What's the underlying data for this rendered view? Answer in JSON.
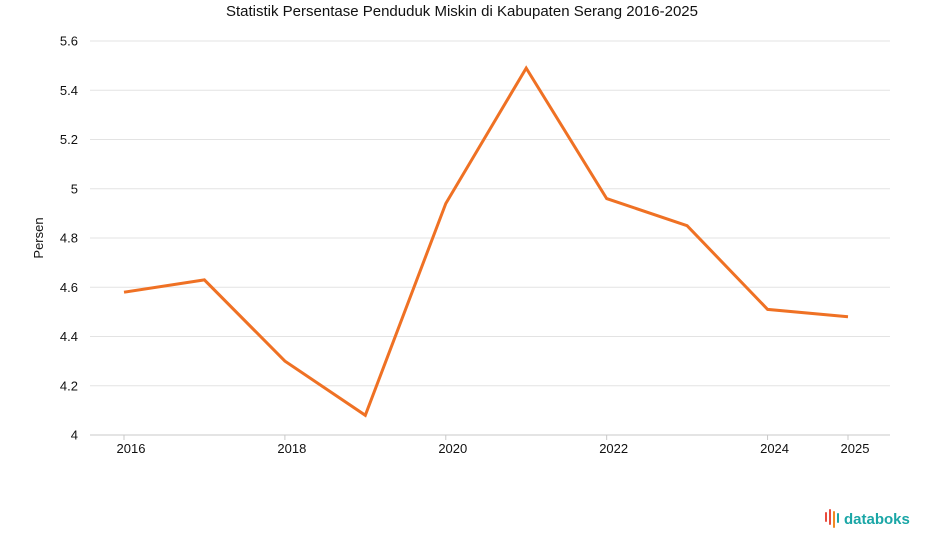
{
  "colors": {
    "line": "#EF7124",
    "grid": "#E3E3E3",
    "axis": "#C8C8C8",
    "text": "#111111",
    "brand_text": "#1AA6A6",
    "brand_bars": [
      "#E94B3C",
      "#F08A24",
      "#1AA6A6"
    ]
  },
  "brand": {
    "name": "databoks",
    "icon": "databoks-logo-icon"
  },
  "chart_data": {
    "type": "line",
    "title": "Statistik Persentase Penduduk Miskin di Kabupaten Serang 2016-2025",
    "xlabel": "",
    "ylabel": "Persen",
    "x": [
      2016,
      2017,
      2018,
      2019,
      2020,
      2021,
      2022,
      2023,
      2024,
      2025
    ],
    "series": [
      {
        "name": "Persentase Penduduk Miskin",
        "values": [
          4.58,
          4.63,
          4.3,
          4.08,
          4.94,
          5.49,
          4.96,
          4.85,
          4.51,
          4.48
        ]
      }
    ],
    "xticks": [
      "2016",
      "2018",
      "2020",
      "2022",
      "2024",
      "2025"
    ],
    "yticks": [
      "4",
      "4.2",
      "4.4",
      "4.6",
      "4.8",
      "5",
      "5.2",
      "5.4",
      "5.6"
    ],
    "ylim": [
      4,
      5.6
    ],
    "grid": true,
    "legend": "none"
  }
}
